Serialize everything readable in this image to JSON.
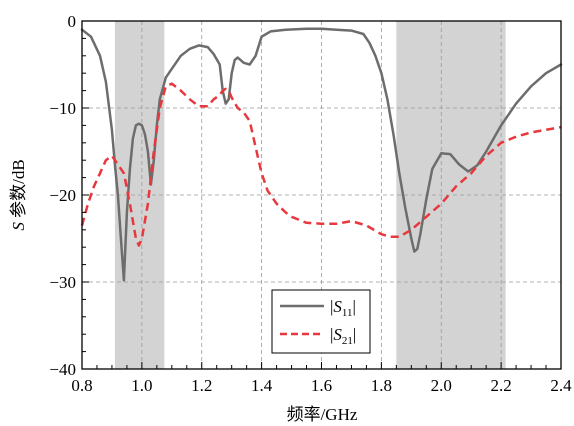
{
  "chart_data": {
    "type": "line",
    "title": "",
    "xlabel": "频率/GHz",
    "ylabel": {
      "italic": "S",
      "rest": " 参数/dB"
    },
    "xlim": [
      0.8,
      2.4
    ],
    "ylim": [
      -40,
      0
    ],
    "x_ticks": [
      0.8,
      1.0,
      1.2,
      1.4,
      1.6,
      1.8,
      2.0,
      2.2,
      2.4
    ],
    "x_tick_labels": [
      "0.8",
      "1.0",
      "1.2",
      "1.4",
      "1.6",
      "1.8",
      "2.0",
      "2.2",
      "2.4"
    ],
    "y_ticks": [
      0,
      -10,
      -20,
      -30,
      -40
    ],
    "y_tick_labels": [
      "0",
      "−10",
      "−20",
      "−30",
      "−40"
    ],
    "grid": true,
    "shaded_bands": [
      {
        "x_start": 0.91,
        "x_end": 1.075,
        "color": "#d3d3d3"
      },
      {
        "x_start": 1.85,
        "x_end": 2.215,
        "color": "#d3d3d3"
      }
    ],
    "legend": {
      "placement": "bottom-center",
      "entries": [
        {
          "symbol": "S",
          "subscript": "11",
          "style": "solid",
          "color": "#6d6d6d"
        },
        {
          "symbol": "S",
          "subscript": "21",
          "style": "dashed",
          "color": "#e8383d"
        }
      ]
    },
    "series": [
      {
        "legend_label": "|S11|",
        "color": "#6d6d6d",
        "style": "solid",
        "x": [
          0.8,
          0.83,
          0.86,
          0.88,
          0.9,
          0.91,
          0.92,
          0.93,
          0.94,
          0.95,
          0.96,
          0.97,
          0.98,
          0.99,
          1.0,
          1.01,
          1.02,
          1.03,
          1.04,
          1.05,
          1.06,
          1.08,
          1.1,
          1.13,
          1.16,
          1.19,
          1.22,
          1.24,
          1.26,
          1.27,
          1.28,
          1.29,
          1.3,
          1.31,
          1.32,
          1.34,
          1.36,
          1.38,
          1.4,
          1.43,
          1.48,
          1.55,
          1.6,
          1.65,
          1.7,
          1.74,
          1.76,
          1.78,
          1.8,
          1.82,
          1.84,
          1.86,
          1.88,
          1.9,
          1.91,
          1.92,
          1.93,
          1.95,
          1.97,
          2.0,
          2.03,
          2.06,
          2.09,
          2.12,
          2.15,
          2.2,
          2.25,
          2.3,
          2.35,
          2.4
        ],
        "values": [
          -1.0,
          -1.8,
          -4.0,
          -7.0,
          -12.5,
          -16.5,
          -20.0,
          -25.0,
          -29.8,
          -22.0,
          -17.0,
          -13.5,
          -12.0,
          -11.8,
          -12.0,
          -13.0,
          -15.0,
          -18.8,
          -16.0,
          -12.0,
          -9.0,
          -6.5,
          -5.5,
          -4.0,
          -3.2,
          -2.8,
          -3.0,
          -3.8,
          -5.0,
          -8.0,
          -9.5,
          -9.0,
          -6.0,
          -4.5,
          -4.2,
          -4.8,
          -5.0,
          -4.0,
          -1.8,
          -1.2,
          -1.0,
          -0.9,
          -0.9,
          -1.0,
          -1.1,
          -1.5,
          -2.5,
          -4.0,
          -6.0,
          -9.0,
          -13.0,
          -17.5,
          -21.5,
          -25.0,
          -26.5,
          -26.2,
          -24.5,
          -20.5,
          -17.0,
          -15.2,
          -15.3,
          -16.5,
          -17.3,
          -16.6,
          -15.0,
          -12.0,
          -9.5,
          -7.5,
          -6.0,
          -5.0
        ]
      },
      {
        "legend_label": "|S21|",
        "color": "#e8383d",
        "style": "dashed",
        "x": [
          0.8,
          0.82,
          0.84,
          0.86,
          0.88,
          0.9,
          0.92,
          0.94,
          0.96,
          0.98,
          0.99,
          1.0,
          1.02,
          1.04,
          1.06,
          1.08,
          1.1,
          1.13,
          1.16,
          1.19,
          1.22,
          1.24,
          1.26,
          1.27,
          1.28,
          1.29,
          1.3,
          1.32,
          1.34,
          1.36,
          1.38,
          1.4,
          1.42,
          1.45,
          1.48,
          1.5,
          1.55,
          1.6,
          1.65,
          1.7,
          1.75,
          1.8,
          1.83,
          1.86,
          1.9,
          1.95,
          2.0,
          2.05,
          2.1,
          2.15,
          2.2,
          2.25,
          2.3,
          2.35,
          2.4
        ],
        "values": [
          -23.5,
          -21.0,
          -19.0,
          -17.5,
          -16.0,
          -15.5,
          -16.5,
          -17.5,
          -21.0,
          -25.0,
          -25.8,
          -25.0,
          -21.0,
          -15.0,
          -10.0,
          -7.5,
          -7.2,
          -8.0,
          -9.0,
          -9.8,
          -9.8,
          -9.0,
          -8.5,
          -8.0,
          -7.8,
          -8.0,
          -8.8,
          -10.0,
          -10.5,
          -11.5,
          -14.5,
          -17.5,
          -19.5,
          -21.0,
          -22.0,
          -22.5,
          -23.2,
          -23.3,
          -23.3,
          -23.0,
          -23.5,
          -24.5,
          -24.8,
          -24.8,
          -24.0,
          -22.5,
          -21.0,
          -19.0,
          -17.5,
          -15.5,
          -14.0,
          -13.3,
          -12.8,
          -12.5,
          -12.2
        ]
      }
    ]
  }
}
